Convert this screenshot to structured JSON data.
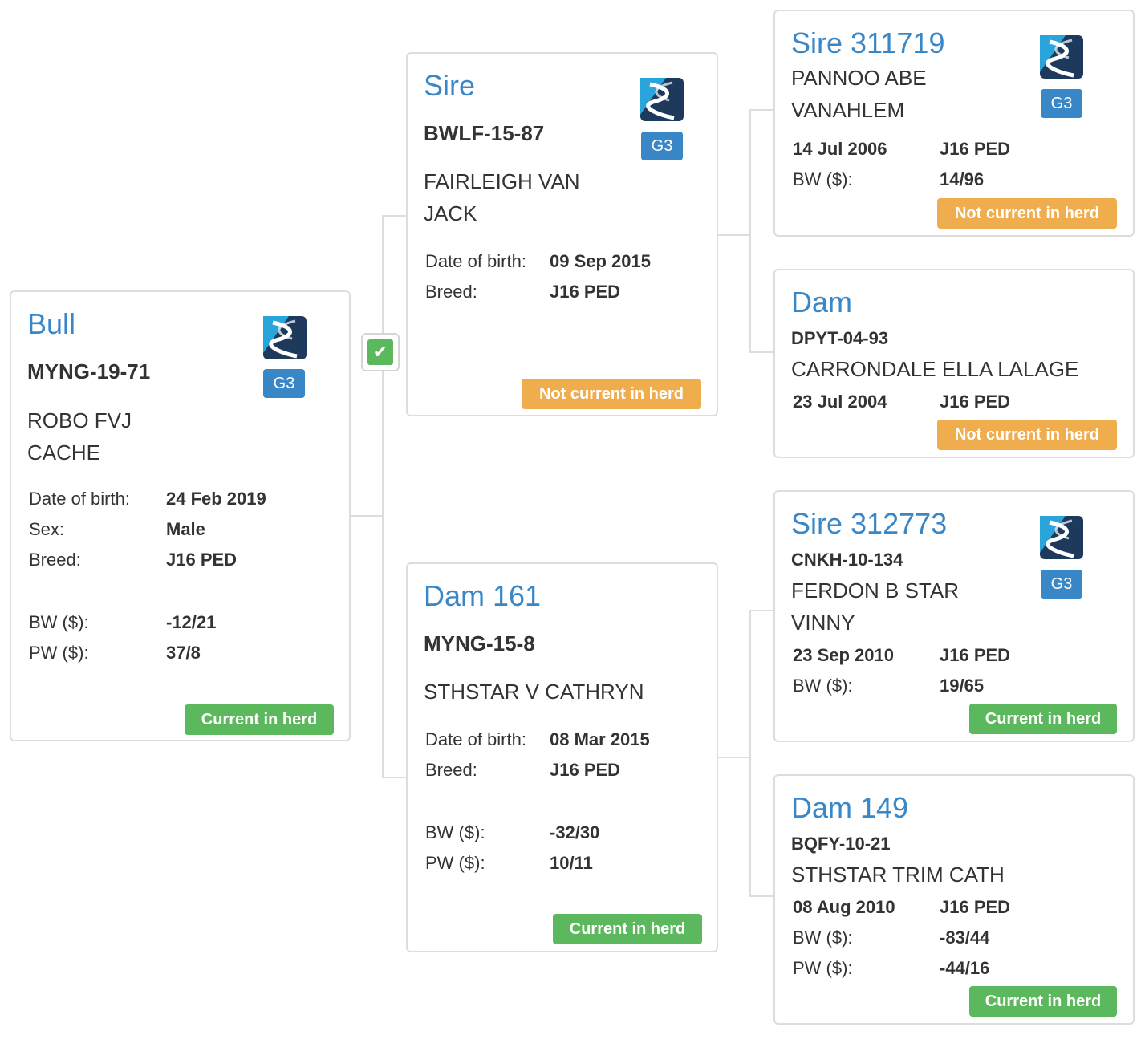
{
  "bull": {
    "title": "Bull",
    "tag": "MYNG-19-71",
    "name_line1": "ROBO FVJ",
    "name_line2": "CACHE",
    "genomic": "G3",
    "dob_label": "Date of birth:",
    "dob": "24 Feb 2019",
    "sex_label": "Sex:",
    "sex": "Male",
    "breed_label": "Breed:",
    "breed": "J16 PED",
    "bw_label": "BW ($):",
    "bw": "-12/21",
    "pw_label": "PW ($):",
    "pw": "37/8",
    "status": "Current in herd"
  },
  "sire": {
    "title": "Sire",
    "tag": "BWLF-15-87",
    "name_line1": "FAIRLEIGH VAN",
    "name_line2": "JACK",
    "genomic": "G3",
    "dob_label": "Date of birth:",
    "dob": "09 Sep 2015",
    "breed_label": "Breed:",
    "breed": "J16 PED",
    "status": "Not current in herd"
  },
  "dam": {
    "title": "Dam 161",
    "tag": "MYNG-15-8",
    "name_line1": "STHSTAR V CATHRYN",
    "dob_label": "Date of birth:",
    "dob": "08 Mar 2015",
    "breed_label": "Breed:",
    "breed": "J16 PED",
    "bw_label": "BW ($):",
    "bw": "-32/30",
    "pw_label": "PW ($):",
    "pw": "10/11",
    "status": "Current in herd"
  },
  "sire_sire": {
    "title": "Sire 311719",
    "name_line1": "PANNOO ABE",
    "name_line2": "VANAHLEM",
    "genomic": "G3",
    "dob": "14 Jul 2006",
    "breed": "J16 PED",
    "bw_label": "BW ($):",
    "bw": "14/96",
    "status": "Not current in herd"
  },
  "sire_dam": {
    "title": "Dam",
    "tag": "DPYT-04-93",
    "name_line1": "CARRONDALE ELLA LALAGE",
    "dob": "23 Jul 2004",
    "breed": "J16 PED",
    "status": "Not current in herd"
  },
  "dam_sire": {
    "title": "Sire 312773",
    "tag": "CNKH-10-134",
    "name_line1": "FERDON B STAR",
    "name_line2": "VINNY",
    "genomic": "G3",
    "dob": "23 Sep 2010",
    "breed": "J16 PED",
    "bw_label": "BW ($):",
    "bw": "19/65",
    "status": "Current in herd"
  },
  "dam_dam": {
    "title": "Dam 149",
    "tag": "BQFY-10-21",
    "name_line1": "STHSTAR TRIM CATH",
    "dob": "08 Aug 2010",
    "breed": "J16 PED",
    "bw_label": "BW ($):",
    "bw": "-83/44",
    "pw_label": "PW ($):",
    "pw": "-44/16",
    "status": "Current in herd"
  },
  "icons": {
    "dna_logo": "dna-helix-logo",
    "checkbox": "check-icon"
  },
  "colors": {
    "title_blue": "#3a87c7",
    "current_green": "#5cb85c",
    "not_current_orange": "#f0ad4e",
    "logo_dark": "#1d3a5c",
    "logo_light": "#2aa5dc"
  }
}
